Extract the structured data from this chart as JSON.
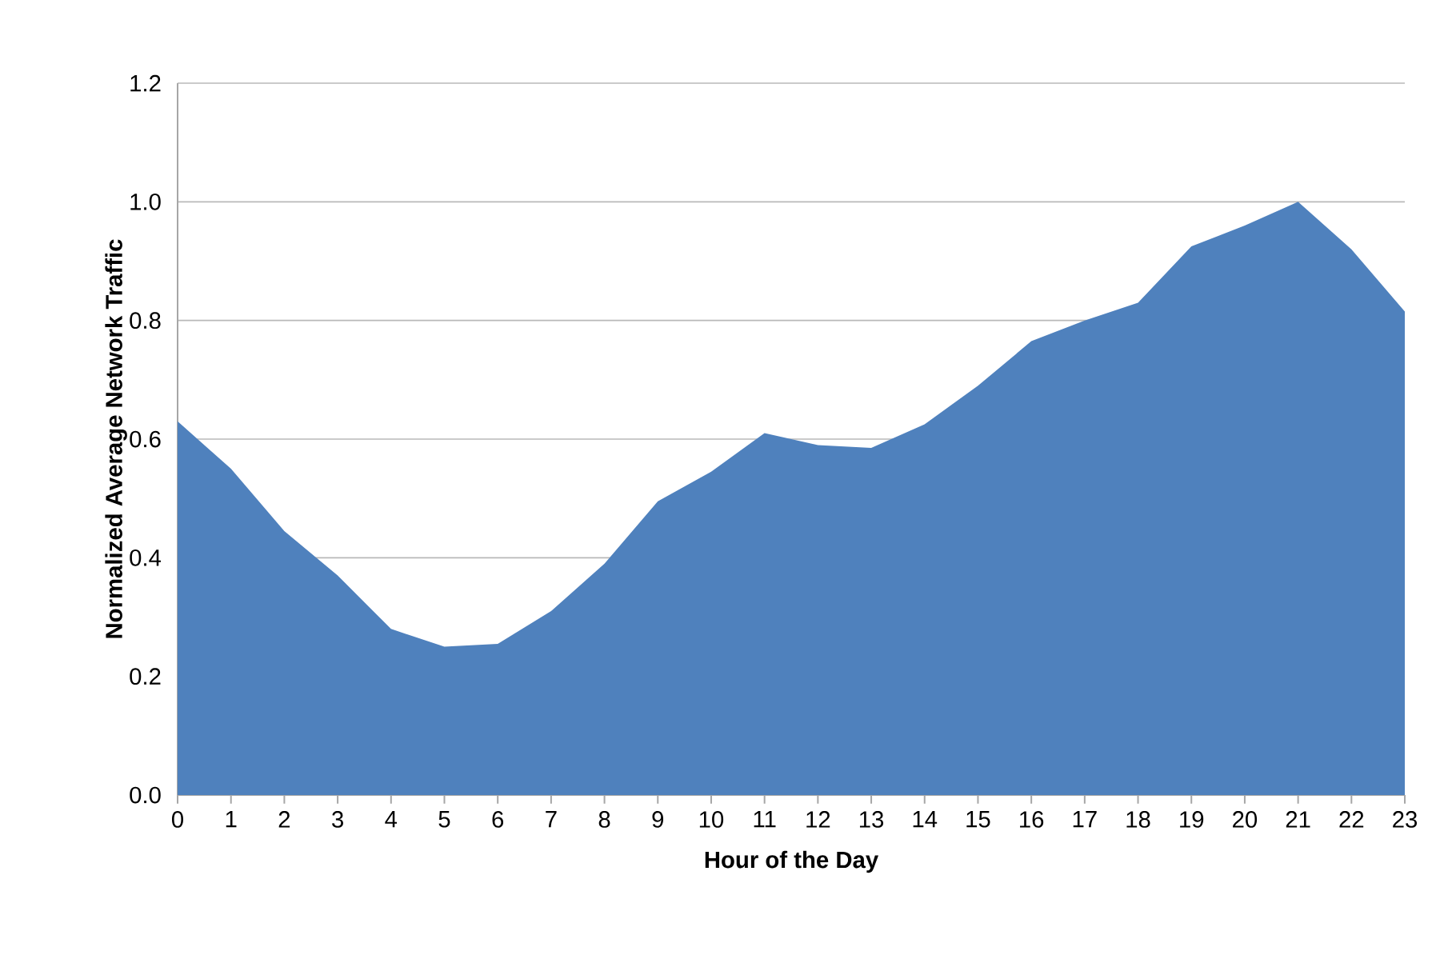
{
  "chart_data": {
    "type": "area",
    "xlabel": "Hour of the Day",
    "ylabel": "Normalized Average Network Traffic",
    "categories": [
      "0",
      "1",
      "2",
      "3",
      "4",
      "5",
      "6",
      "7",
      "8",
      "9",
      "10",
      "11",
      "12",
      "13",
      "14",
      "15",
      "16",
      "17",
      "18",
      "19",
      "20",
      "21",
      "22",
      "23"
    ],
    "values": [
      0.63,
      0.55,
      0.445,
      0.37,
      0.28,
      0.25,
      0.255,
      0.31,
      0.39,
      0.495,
      0.545,
      0.61,
      0.59,
      0.585,
      0.625,
      0.69,
      0.765,
      0.8,
      0.83,
      0.925,
      0.96,
      1.0,
      0.92,
      0.815
    ],
    "color": "#4f81bd",
    "ylim": [
      0,
      1.2
    ],
    "yticks": [
      {
        "value": 0,
        "label": "0.0"
      },
      {
        "value": 0.2,
        "label": "0.2"
      },
      {
        "value": 0.4,
        "label": "0.4"
      },
      {
        "value": 0.6,
        "label": "0.6"
      },
      {
        "value": 0.8,
        "label": "0.8"
      },
      {
        "value": 1.0,
        "label": "1.0"
      },
      1.2
    ],
    "grid": "y"
  }
}
